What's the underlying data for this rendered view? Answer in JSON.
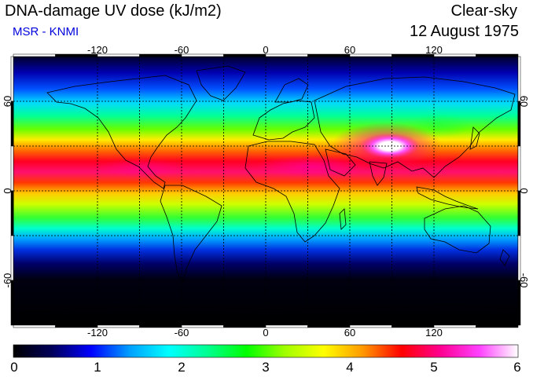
{
  "header": {
    "title": "DNA-damage UV dose (kJ/m2)",
    "subtitle": "MSR - KNMI",
    "sky_condition": "Clear-sky",
    "date": "12 August 1975"
  },
  "map": {
    "projection": "equirectangular",
    "lon_range": [
      -180,
      180
    ],
    "lat_range": [
      -90,
      90
    ],
    "lon_ticks": [
      "-120",
      "-60",
      "0",
      "60",
      "120"
    ],
    "lat_ticks": [
      "60",
      "0",
      "-60"
    ],
    "grid_lines_lat": [
      60,
      30,
      0,
      -30,
      -60
    ],
    "grid_lines_lon": [
      -120,
      -90,
      -60,
      -30,
      0,
      30,
      60,
      90,
      120
    ],
    "grid": "dashed black",
    "coastlines": true
  },
  "colorbar": {
    "labels": [
      "0",
      "1",
      "2",
      "3",
      "4",
      "5",
      "6"
    ],
    "min": 0,
    "max": 6,
    "colors": [
      "#000000",
      "#00005a",
      "#0000ff",
      "#00a0ff",
      "#00ffff",
      "#00ff90",
      "#00ff00",
      "#a0ff00",
      "#ffff00",
      "#ff9900",
      "#ff0000",
      "#ff0090",
      "#ff40ff",
      "#ffffff"
    ]
  },
  "palette": {
    "subtitle_color": "#0000dd"
  }
}
